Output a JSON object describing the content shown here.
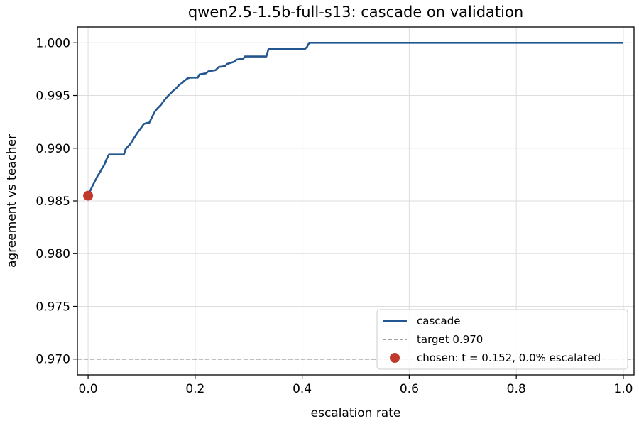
{
  "chart_data": {
    "type": "line",
    "title": "qwen2.5-1.5b-full-s13: cascade on validation",
    "xlabel": "escalation rate",
    "ylabel": "agreement vs teacher",
    "xlim": [
      -0.02,
      1.02
    ],
    "ylim": [
      0.9685,
      1.0015
    ],
    "xticks": [
      "0.0",
      "0.2",
      "0.4",
      "0.6",
      "0.8",
      "1.0"
    ],
    "xtick_values": [
      0.0,
      0.2,
      0.4,
      0.6,
      0.8,
      1.0
    ],
    "yticks": [
      "0.970",
      "0.975",
      "0.980",
      "0.985",
      "0.990",
      "0.995",
      "1.000"
    ],
    "ytick_values": [
      0.97,
      0.975,
      0.98,
      0.985,
      0.99,
      0.995,
      1.0
    ],
    "grid": true,
    "legend_position": "lower-right",
    "colors": {
      "cascade": "#23568f",
      "target": "#808080",
      "chosen": "#c0392b"
    },
    "series": [
      {
        "name": "cascade",
        "x": [
          0.0,
          0.007,
          0.013,
          0.018,
          0.022,
          0.025,
          0.03,
          0.034,
          0.039,
          0.067,
          0.07,
          0.075,
          0.079,
          0.085,
          0.09,
          0.094,
          0.1,
          0.104,
          0.11,
          0.114,
          0.12,
          0.125,
          0.13,
          0.134,
          0.136,
          0.14,
          0.145,
          0.15,
          0.156,
          0.16,
          0.165,
          0.17,
          0.176,
          0.18,
          0.185,
          0.19,
          0.205,
          0.208,
          0.22,
          0.225,
          0.238,
          0.244,
          0.256,
          0.26,
          0.273,
          0.277,
          0.29,
          0.293,
          0.333,
          0.337,
          0.405,
          0.409,
          0.411,
          0.413,
          1.0
        ],
        "y": [
          0.9855,
          0.9863,
          0.9869,
          0.9874,
          0.9877,
          0.988,
          0.9884,
          0.9889,
          0.9894,
          0.9894,
          0.9899,
          0.9902,
          0.9904,
          0.9909,
          0.9913,
          0.9916,
          0.992,
          0.9923,
          0.9924,
          0.9924,
          0.993,
          0.9935,
          0.9938,
          0.994,
          0.9941,
          0.9944,
          0.9947,
          0.995,
          0.9953,
          0.9955,
          0.9957,
          0.996,
          0.9962,
          0.9964,
          0.9966,
          0.9967,
          0.9967,
          0.997,
          0.9971,
          0.9973,
          0.9974,
          0.9977,
          0.9978,
          0.998,
          0.9982,
          0.9984,
          0.9985,
          0.9987,
          0.9987,
          0.9994,
          0.9994,
          0.9996,
          0.9998,
          1.0,
          1.0
        ]
      }
    ],
    "reference_line": {
      "name": "target 0.970",
      "y": 0.97
    },
    "marker": {
      "name": "chosen: t = 0.152, 0.0% escalated",
      "x": 0.0,
      "y": 0.9855
    },
    "legend": [
      {
        "label": "cascade",
        "kind": "line"
      },
      {
        "label": "target 0.970",
        "kind": "dashed"
      },
      {
        "label": "chosen: t = 0.152, 0.0% escalated",
        "kind": "marker"
      }
    ]
  }
}
